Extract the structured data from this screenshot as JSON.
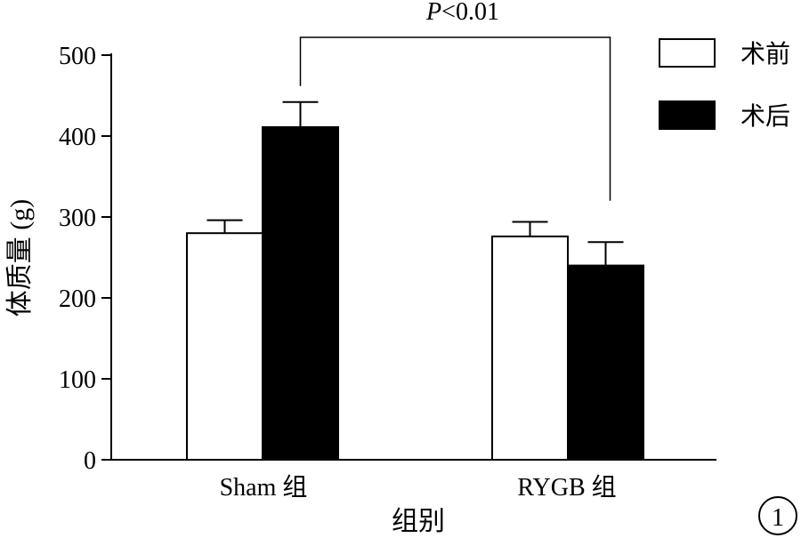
{
  "chart_data": {
    "type": "bar",
    "categories": [
      "Sham 组",
      "RYGB 组"
    ],
    "series": [
      {
        "name": "术前",
        "values": [
          280,
          276
        ],
        "errors": [
          16,
          18
        ],
        "fill": "#ffffff"
      },
      {
        "name": "术后",
        "values": [
          411,
          240
        ],
        "errors": [
          31,
          29
        ],
        "fill": "#000000"
      }
    ],
    "xlabel": "组别",
    "ylabel": "体质量 (g)",
    "ylim": [
      0,
      500
    ],
    "yticks": [
      0,
      100,
      200,
      300,
      400,
      500
    ],
    "grid": false,
    "legend_position": "top-right",
    "annotation": {
      "italic": "P",
      "rest": "<0.01"
    },
    "figure_number": "1"
  }
}
